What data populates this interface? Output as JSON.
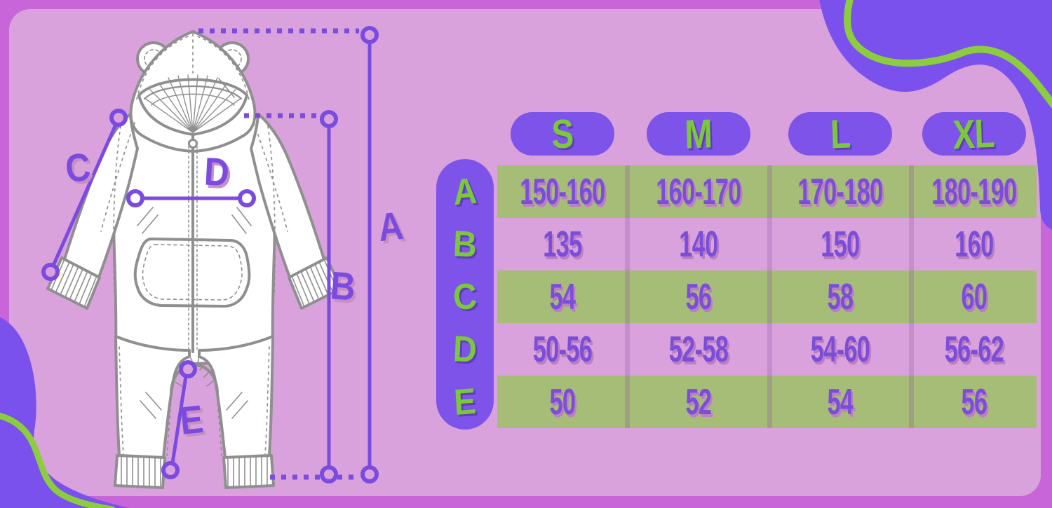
{
  "size_table": {
    "columns": [
      "S",
      "M",
      "L",
      "XL"
    ],
    "rows": [
      {
        "label": "A",
        "values": [
          "150-160",
          "160-170",
          "170-180",
          "180-190"
        ]
      },
      {
        "label": "B",
        "values": [
          "135",
          "140",
          "150",
          "160"
        ]
      },
      {
        "label": "C",
        "values": [
          "54",
          "56",
          "58",
          "60"
        ]
      },
      {
        "label": "D",
        "values": [
          "50-56",
          "52-58",
          "54-60",
          "56-62"
        ]
      },
      {
        "label": "E",
        "values": [
          "50",
          "52",
          "54",
          "56"
        ]
      }
    ]
  },
  "diagram": {
    "labels": {
      "A": "A",
      "B": "B",
      "C": "C",
      "D": "D",
      "E": "E"
    }
  },
  "colors": {
    "outer_background": "#c865d9",
    "panel_background": "#d9a2dc",
    "blob_purple": "#7b51ee",
    "pill_purple": "#7d53e9",
    "accent_green": "#7cc83d",
    "squiggle_green": "#8ccd3f",
    "table_row_green": "#a6bd77",
    "measure_line_purple": "#7b4be0",
    "value_text_purple": "#7a4ed8",
    "garment_line_gray": "#8f8f8f"
  }
}
